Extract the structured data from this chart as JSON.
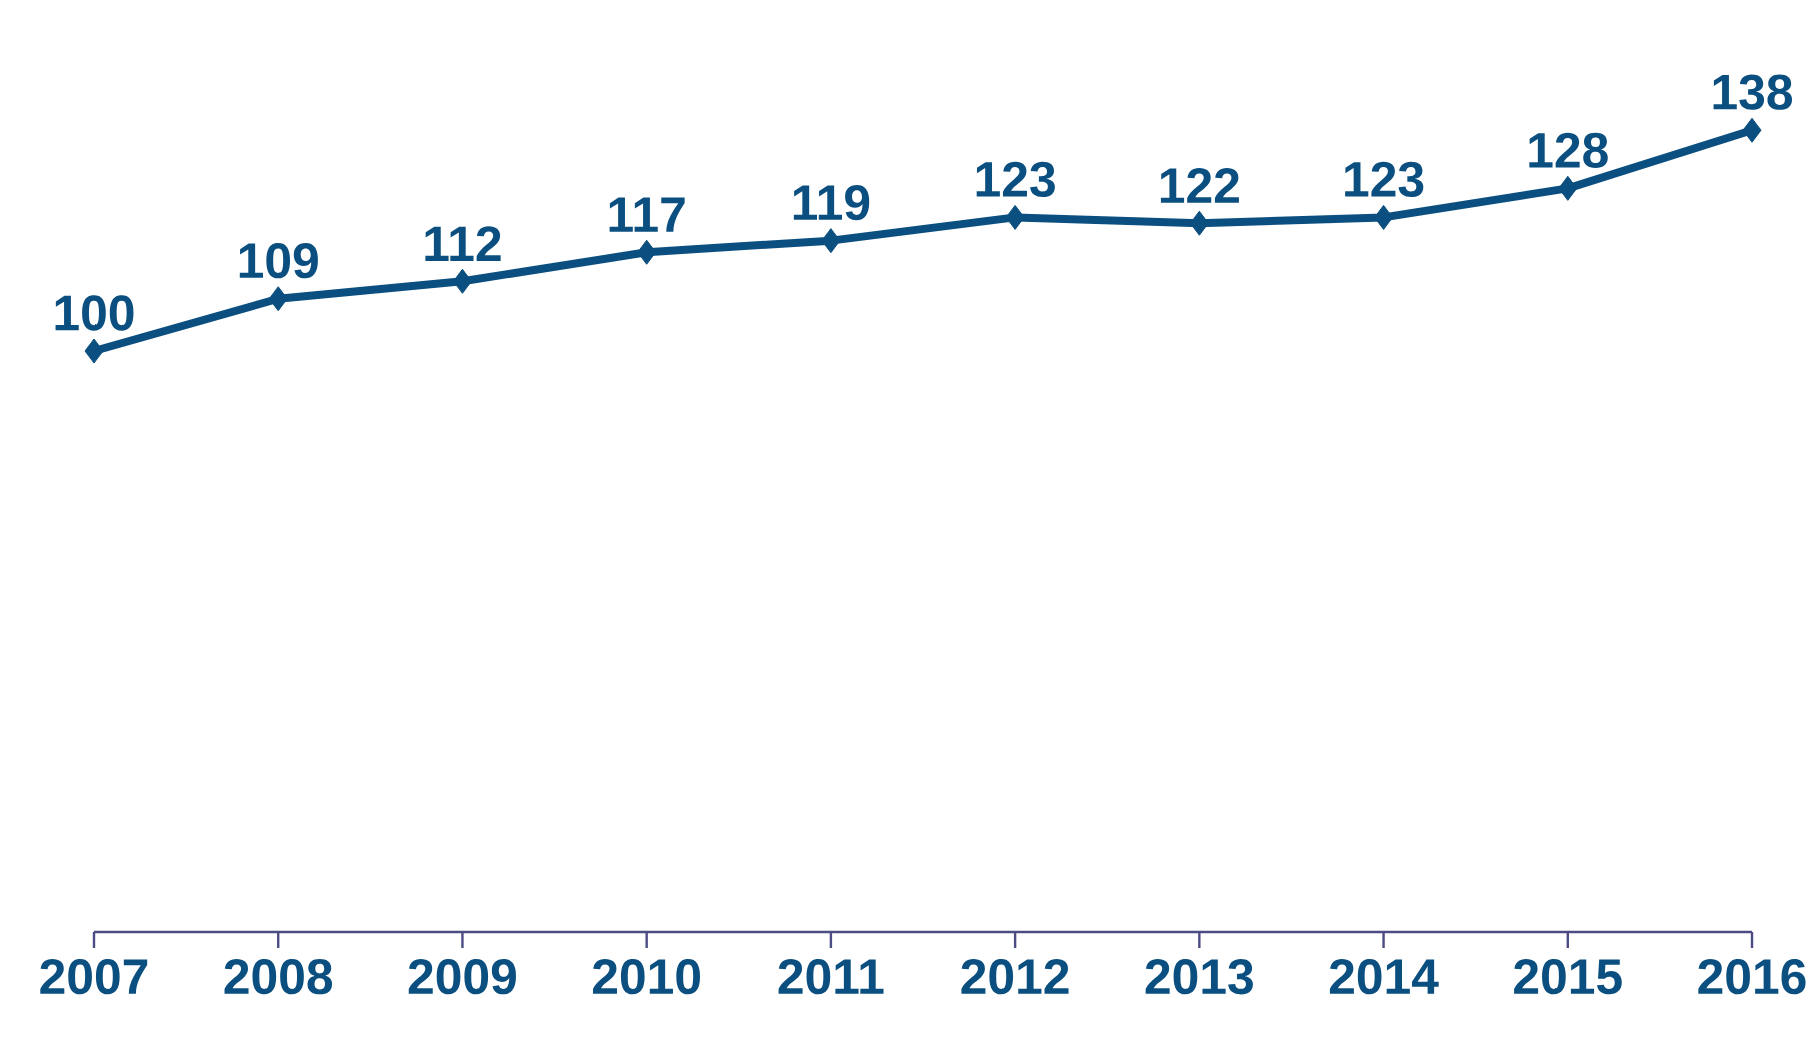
{
  "chart_data": {
    "type": "line",
    "categories": [
      "2007",
      "2008",
      "2009",
      "2010",
      "2011",
      "2012",
      "2013",
      "2014",
      "2015",
      "2016"
    ],
    "series": [
      {
        "color": "#0b4f80",
        "values": [
          100,
          109,
          112,
          117,
          119,
          123,
          122,
          123,
          128,
          138
        ]
      }
    ],
    "tick_labels": "x",
    "data_labels": true,
    "grid": false,
    "marker": "diamond",
    "line_style": "solid"
  }
}
